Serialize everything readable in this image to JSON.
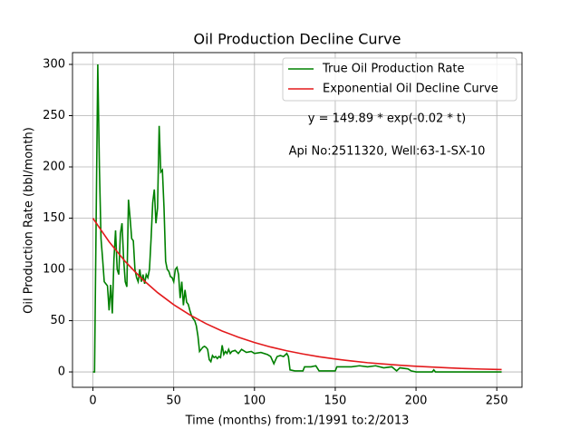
{
  "chart_data": {
    "type": "line",
    "title": "Oil Production Decline Curve",
    "xlabel": "Time (months) from:1/1991 to:2/2013",
    "ylabel": "Oil Production Rate (bbl/month)",
    "annotations": [
      "y = 149.89 * exp(-0.02 * t)",
      "Api No:2511320, Well:63-1-SX-10"
    ],
    "xlim": [
      -12.65,
      265.6
    ],
    "ylim": [
      -15,
      311.5
    ],
    "xticks": [
      0,
      50,
      100,
      150,
      200,
      250
    ],
    "yticks": [
      0,
      50,
      100,
      150,
      200,
      250,
      300
    ],
    "grid": true,
    "legend": "upper right",
    "series": [
      {
        "name": "True Oil Production Rate",
        "color": "#008000",
        "x": [
          0,
          1,
          2,
          3,
          4,
          5,
          6,
          7,
          8,
          9,
          10,
          11,
          12,
          13,
          14,
          15,
          16,
          17,
          18,
          19,
          20,
          21,
          22,
          23,
          24,
          25,
          26,
          27,
          28,
          29,
          30,
          31,
          32,
          33,
          34,
          35,
          36,
          37,
          38,
          39,
          40,
          41,
          42,
          43,
          44,
          45,
          46,
          47,
          48,
          49,
          50,
          51,
          52,
          53,
          54,
          55,
          56,
          57,
          58,
          59,
          60,
          61,
          62,
          63,
          64,
          65,
          66,
          67,
          68,
          69,
          70,
          71,
          72,
          73,
          74,
          75,
          76,
          77,
          78,
          79,
          80,
          81,
          82,
          83,
          84,
          85,
          86,
          88,
          90,
          92,
          95,
          98,
          100,
          104,
          108,
          110,
          112,
          114,
          116,
          118,
          120,
          121,
          122,
          125,
          130,
          131,
          135,
          138,
          140,
          145,
          150,
          151,
          155,
          160,
          165,
          170,
          175,
          180,
          185,
          188,
          190,
          195,
          197,
          200,
          205,
          210,
          211,
          212,
          220,
          230,
          240,
          253
        ],
        "values": [
          0,
          0,
          150,
          300,
          200,
          130,
          110,
          88,
          86,
          84,
          60,
          85,
          57,
          110,
          138,
          100,
          95,
          135,
          145,
          110,
          88,
          83,
          168,
          150,
          130,
          128,
          100,
          92,
          88,
          100,
          88,
          95,
          86,
          95,
          92,
          100,
          130,
          165,
          178,
          145,
          160,
          240,
          195,
          197,
          160,
          108,
          100,
          98,
          93,
          92,
          88,
          100,
          102,
          95,
          72,
          88,
          65,
          80,
          68,
          66,
          60,
          55,
          52,
          50,
          45,
          35,
          20,
          22,
          24,
          25,
          24,
          22,
          12,
          10,
          16,
          14,
          15,
          13,
          15,
          14,
          26,
          17,
          20,
          18,
          22,
          18,
          20,
          21,
          18,
          22,
          19,
          20,
          18,
          19,
          17,
          15,
          8,
          15,
          16,
          15,
          18,
          15,
          2,
          1,
          1,
          5,
          5,
          6,
          1,
          1,
          1,
          5,
          5,
          5,
          6,
          5,
          6,
          4,
          5,
          1,
          4,
          3,
          1,
          0,
          0,
          0,
          2,
          0,
          0,
          0,
          0,
          0
        ]
      },
      {
        "name": "Exponential Oil Decline Curve",
        "color": "#e31a1c",
        "x": [
          0,
          10,
          20,
          30,
          40,
          50,
          60,
          70,
          80,
          90,
          100,
          110,
          120,
          130,
          140,
          150,
          160,
          170,
          180,
          190,
          200,
          210,
          220,
          230,
          240,
          253
        ],
        "values": [
          149.9,
          127.0,
          107.7,
          91.3,
          77.4,
          65.6,
          55.6,
          47.1,
          39.9,
          33.9,
          28.7,
          24.3,
          20.6,
          17.5,
          14.8,
          12.6,
          10.7,
          9.0,
          7.7,
          6.5,
          5.5,
          4.7,
          4.0,
          3.3,
          2.8,
          2.3
        ]
      }
    ]
  }
}
